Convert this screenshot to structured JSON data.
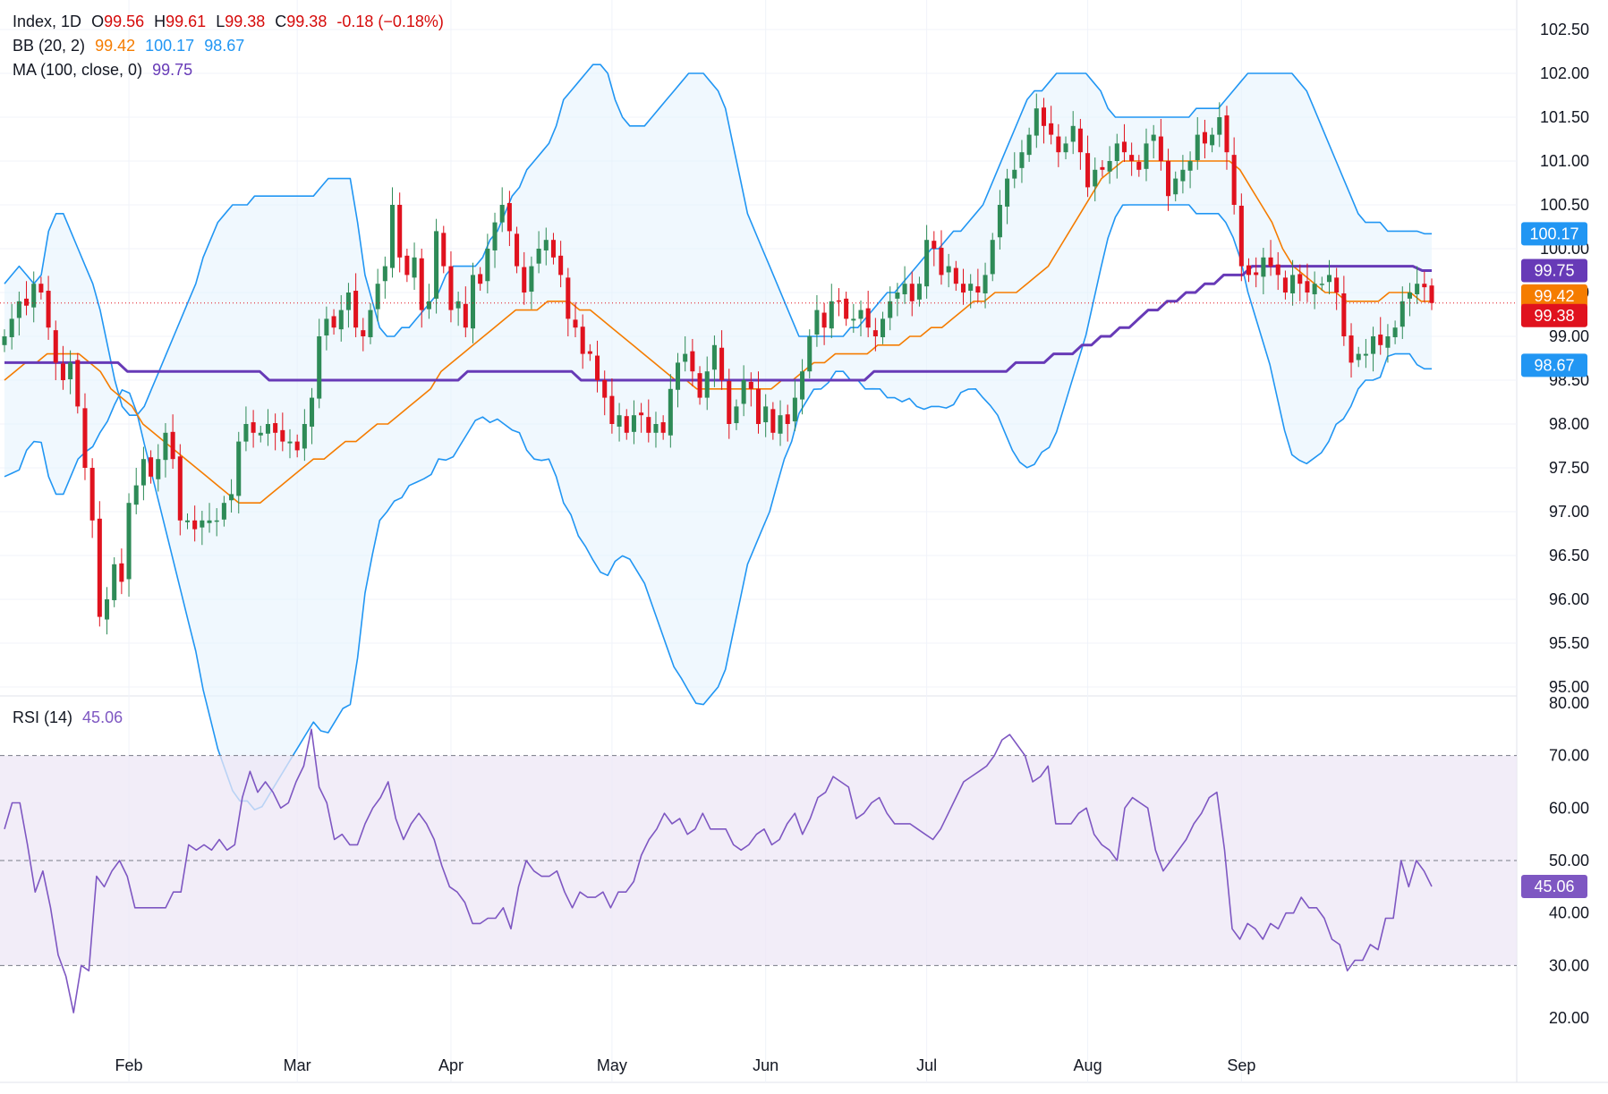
{
  "legend": {
    "symbol": "Index, 1D",
    "open_label": "O",
    "open": "99.56",
    "high_label": "H",
    "high": "99.61",
    "low_label": "L",
    "low": "99.38",
    "close_label": "C",
    "close": "99.38",
    "change": "-0.18 (−0.18%)",
    "bb_label": "BB (20, 2)",
    "bb_basis": "99.42",
    "bb_upper": "100.17",
    "bb_lower": "98.67",
    "ma_label": "MA (100, close, 0)",
    "ma_value": "99.75",
    "rsi_label": "RSI (14)",
    "rsi_value": "45.06"
  },
  "colors": {
    "up": "#26a69a",
    "up_body": "#2e8b57",
    "down": "#e0121e",
    "bb_basis": "#f57c00",
    "bb_band": "#2196f3",
    "bb_fill": "#e3f2fd",
    "ma": "#673ab7",
    "rsi": "#7e57c2",
    "rsi_fill": "#ede7f6"
  },
  "chart_data": [
    {
      "type": "candlestick",
      "title": "",
      "ylim": [
        95.0,
        102.5
      ],
      "y_ticks": [
        "102.50",
        "102.00",
        "101.50",
        "101.00",
        "100.50",
        "100.00",
        "99.50",
        "99.00",
        "98.50",
        "98.00",
        "97.50",
        "97.00",
        "96.50",
        "96.00",
        "95.50",
        "95.00"
      ],
      "x_ticks": [
        "Feb",
        "Mar",
        "Apr",
        "May",
        "Jun",
        "Jul",
        "Aug",
        "Sep"
      ],
      "current_price": 99.38,
      "price_badges": [
        {
          "series": "BB upper",
          "value": "100.17"
        },
        {
          "series": "MA 100",
          "value": "99.75"
        },
        {
          "series": "BB basis",
          "value": "99.42"
        },
        {
          "series": "Close",
          "value": "99.38"
        },
        {
          "series": "BB lower",
          "value": "98.67"
        }
      ],
      "closes": [
        99.0,
        99.2,
        99.4,
        99.35,
        99.6,
        99.5,
        99.1,
        98.7,
        98.5,
        98.7,
        98.2,
        97.5,
        96.9,
        95.8,
        96.0,
        96.4,
        96.2,
        97.1,
        97.3,
        97.6,
        97.4,
        97.6,
        97.9,
        97.6,
        96.9,
        96.9,
        96.8,
        96.9,
        96.9,
        96.9,
        97.1,
        97.2,
        97.8,
        98.0,
        97.9,
        97.9,
        98.0,
        97.9,
        97.8,
        97.8,
        97.7,
        98.0,
        98.3,
        99.0,
        99.2,
        99.1,
        99.3,
        99.5,
        99.1,
        99.0,
        99.3,
        99.6,
        99.8,
        100.5,
        99.9,
        99.7,
        99.9,
        99.3,
        99.4,
        100.2,
        99.8,
        99.3,
        99.4,
        99.1,
        99.7,
        99.6,
        100.0,
        100.3,
        100.5,
        100.2,
        99.8,
        99.5,
        99.8,
        100.0,
        100.1,
        99.9,
        99.7,
        99.2,
        99.1,
        98.8,
        98.8,
        98.5,
        98.3,
        98.0,
        98.1,
        97.9,
        98.1,
        98.1,
        97.9,
        98.0,
        97.9,
        98.4,
        98.7,
        98.8,
        98.6,
        98.3,
        98.6,
        98.9,
        98.5,
        98.0,
        98.2,
        98.5,
        98.4,
        98.0,
        98.2,
        97.9,
        98.1,
        98.0,
        98.3,
        98.6,
        99.0,
        99.3,
        99.1,
        99.4,
        99.4,
        99.2,
        99.2,
        99.3,
        99.1,
        99.0,
        99.2,
        99.4,
        99.5,
        99.6,
        99.4,
        99.6,
        100.1,
        100.0,
        99.7,
        99.8,
        99.6,
        99.5,
        99.6,
        99.5,
        99.7,
        100.1,
        100.5,
        100.8,
        100.9,
        101.1,
        101.3,
        101.6,
        101.4,
        101.3,
        101.1,
        101.2,
        101.4,
        101.1,
        100.7,
        100.9,
        100.9,
        101.0,
        101.2,
        101.1,
        101.0,
        100.9,
        101.2,
        101.3,
        101.0,
        100.6,
        100.8,
        100.9,
        101.0,
        101.3,
        101.2,
        101.3,
        101.5,
        101.1,
        100.5,
        99.8,
        99.7,
        99.7,
        99.9,
        99.8,
        99.7,
        99.5,
        99.7,
        99.6,
        99.5,
        99.6,
        99.6,
        99.7,
        99.5,
        99.0,
        98.7,
        98.8,
        98.8,
        99.0,
        98.9,
        99.0,
        99.1,
        99.4,
        99.5,
        99.6,
        99.56,
        99.38
      ],
      "bb_upper": [
        99.6,
        99.7,
        99.8,
        99.7,
        99.6,
        99.7,
        100.2,
        100.4,
        100.4,
        100.2,
        100.0,
        99.8,
        99.6,
        99.3,
        98.9,
        98.5,
        98.2,
        98.1,
        98.1,
        98.2,
        98.4,
        98.6,
        98.8,
        99.0,
        99.2,
        99.4,
        99.6,
        99.9,
        100.1,
        100.3,
        100.4,
        100.5,
        100.5,
        100.5,
        100.6,
        100.6,
        100.6,
        100.6,
        100.6,
        100.6,
        100.6,
        100.6,
        100.6,
        100.7,
        100.8,
        100.8,
        100.8,
        100.8,
        100.3,
        99.7,
        99.4,
        99.1,
        99.0,
        99.0,
        99.1,
        99.1,
        99.2,
        99.3,
        99.4,
        99.5,
        99.7,
        99.8,
        99.8,
        99.8,
        99.8,
        99.9,
        100.1,
        100.2,
        100.4,
        100.6,
        100.7,
        100.9,
        101.0,
        101.1,
        101.2,
        101.4,
        101.7,
        101.8,
        101.9,
        102.0,
        102.1,
        102.1,
        102.0,
        101.7,
        101.5,
        101.4,
        101.4,
        101.4,
        101.5,
        101.6,
        101.7,
        101.8,
        101.9,
        102.0,
        102.0,
        102.0,
        101.9,
        101.8,
        101.6,
        101.2,
        100.8,
        100.4,
        100.2,
        100.0,
        99.8,
        99.6,
        99.4,
        99.2,
        99.0,
        99.0,
        99.0,
        99.0,
        99.0,
        99.0,
        99.0,
        99.1,
        99.1,
        99.2,
        99.3,
        99.4,
        99.5,
        99.5,
        99.6,
        99.7,
        99.8,
        99.9,
        100.0,
        100.0,
        100.1,
        100.2,
        100.2,
        100.3,
        100.4,
        100.5,
        100.7,
        100.9,
        101.1,
        101.3,
        101.5,
        101.7,
        101.8,
        101.8,
        101.9,
        102.0,
        102.0,
        102.0,
        102.0,
        102.0,
        101.9,
        101.8,
        101.6,
        101.5,
        101.5,
        101.5,
        101.5,
        101.5,
        101.5,
        101.5,
        101.5,
        101.5,
        101.5,
        101.5,
        101.6,
        101.6,
        101.6,
        101.6,
        101.7,
        101.8,
        101.9,
        102.0,
        102.0,
        102.0,
        102.0,
        102.0,
        102.0,
        102.0,
        101.9,
        101.8,
        101.6,
        101.4,
        101.2,
        101.0,
        100.8,
        100.6,
        100.4,
        100.3,
        100.3,
        100.3,
        100.2,
        100.2,
        100.2,
        100.2,
        100.2,
        100.17,
        100.17
      ],
      "bb_basis": [
        98.5,
        98.6,
        98.7,
        98.7,
        98.8,
        98.8,
        98.8,
        98.8,
        98.7,
        98.6,
        98.4,
        98.3,
        98.2,
        98.0,
        97.9,
        97.8,
        97.7,
        97.6,
        97.5,
        97.4,
        97.3,
        97.2,
        97.1,
        97.1,
        97.1,
        97.2,
        97.3,
        97.4,
        97.5,
        97.6,
        97.6,
        97.7,
        97.8,
        97.8,
        97.9,
        98.0,
        98.0,
        98.1,
        98.2,
        98.3,
        98.4,
        98.6,
        98.7,
        98.8,
        98.9,
        99.0,
        99.1,
        99.2,
        99.3,
        99.3,
        99.3,
        99.4,
        99.4,
        99.4,
        99.3,
        99.3,
        99.2,
        99.1,
        99.0,
        98.9,
        98.8,
        98.7,
        98.6,
        98.5,
        98.5,
        98.4,
        98.4,
        98.4,
        98.4,
        98.4,
        98.4,
        98.4,
        98.4,
        98.5,
        98.5,
        98.6,
        98.7,
        98.7,
        98.8,
        98.8,
        98.8,
        98.8,
        98.9,
        98.9,
        98.9,
        99.0,
        99.0,
        99.1,
        99.1,
        99.2,
        99.3,
        99.4,
        99.4,
        99.5,
        99.5,
        99.5,
        99.6,
        99.7,
        99.8,
        100.0,
        100.2,
        100.4,
        100.6,
        100.8,
        100.9,
        101.0,
        101.0,
        101.0,
        101.0,
        101.0,
        101.0,
        101.0,
        101.0,
        101.0,
        101.0,
        101.0,
        100.9,
        100.7,
        100.5,
        100.3,
        100.0,
        99.8,
        99.7,
        99.6,
        99.5,
        99.5,
        99.4,
        99.4,
        99.4,
        99.4,
        99.5,
        99.5,
        99.5,
        99.4,
        99.4
      ],
      "ma100": [
        98.7,
        98.7,
        98.7,
        98.7,
        98.7,
        98.7,
        98.7,
        98.7,
        98.7,
        98.7,
        98.7,
        98.7,
        98.7,
        98.6,
        98.6,
        98.6,
        98.6,
        98.6,
        98.6,
        98.6,
        98.6,
        98.6,
        98.6,
        98.6,
        98.6,
        98.6,
        98.6,
        98.6,
        98.5,
        98.5,
        98.5,
        98.5,
        98.5,
        98.5,
        98.5,
        98.5,
        98.5,
        98.5,
        98.5,
        98.5,
        98.5,
        98.5,
        98.5,
        98.5,
        98.5,
        98.5,
        98.5,
        98.5,
        98.5,
        98.6,
        98.6,
        98.6,
        98.6,
        98.6,
        98.6,
        98.6,
        98.6,
        98.6,
        98.6,
        98.6,
        98.6,
        98.5,
        98.5,
        98.5,
        98.5,
        98.5,
        98.5,
        98.5,
        98.5,
        98.5,
        98.5,
        98.5,
        98.5,
        98.5,
        98.5,
        98.5,
        98.5,
        98.5,
        98.5,
        98.5,
        98.5,
        98.5,
        98.5,
        98.5,
        98.5,
        98.5,
        98.5,
        98.5,
        98.5,
        98.5,
        98.5,
        98.5,
        98.6,
        98.6,
        98.6,
        98.6,
        98.6,
        98.6,
        98.6,
        98.6,
        98.6,
        98.6,
        98.6,
        98.6,
        98.6,
        98.6,
        98.6,
        98.7,
        98.7,
        98.7,
        98.7,
        98.8,
        98.8,
        98.8,
        98.9,
        98.9,
        99.0,
        99.0,
        99.1,
        99.1,
        99.2,
        99.3,
        99.3,
        99.4,
        99.4,
        99.5,
        99.5,
        99.6,
        99.6,
        99.7,
        99.7,
        99.7,
        99.8,
        99.8,
        99.8,
        99.8,
        99.8,
        99.8,
        99.8,
        99.8,
        99.8,
        99.8,
        99.8,
        99.8,
        99.8,
        99.8,
        99.8,
        99.8,
        99.8,
        99.8,
        99.75,
        99.75
      ]
    },
    {
      "type": "line",
      "title": "",
      "ylim": [
        16,
        80
      ],
      "y_ticks": [
        "80.00",
        "70.00",
        "60.00",
        "50.00",
        "40.00",
        "30.00",
        "20.00"
      ],
      "levels": [
        70,
        50,
        30
      ],
      "x_ticks": [
        "Feb",
        "Mar",
        "Apr",
        "May",
        "Jun",
        "Jul",
        "Aug",
        "Sep"
      ],
      "series": [
        {
          "values": [
            56,
            61,
            61,
            53,
            44,
            48,
            41,
            32,
            28,
            21,
            30,
            29,
            47,
            45,
            48,
            50,
            47,
            41,
            41,
            41,
            41,
            41,
            44,
            44,
            53,
            52,
            53,
            52,
            54,
            52,
            53,
            62,
            67,
            63,
            65,
            63,
            60,
            61,
            65,
            68,
            75,
            64,
            61,
            54,
            55,
            53,
            53,
            57,
            60,
            62,
            65,
            58,
            54,
            57,
            59,
            57,
            54,
            49,
            45,
            44,
            42,
            38,
            38,
            39,
            39,
            41,
            37,
            45,
            50,
            48,
            47,
            47,
            48,
            44,
            41,
            44,
            43,
            43,
            44,
            41,
            44,
            44,
            46,
            51,
            54,
            56,
            59,
            57,
            58,
            55,
            56,
            59,
            56,
            56,
            56,
            53,
            52,
            53,
            55,
            56,
            53,
            54,
            57,
            59,
            55,
            58,
            62,
            63,
            66,
            65,
            64,
            58,
            59,
            61,
            62,
            59,
            57,
            57,
            57,
            56,
            55,
            54,
            56,
            59,
            62,
            65,
            66,
            67,
            68,
            70,
            73,
            74,
            72,
            70,
            65,
            66,
            68,
            57,
            57,
            57,
            59,
            60,
            55,
            53,
            52,
            50,
            60,
            62,
            61,
            60,
            52,
            48,
            50,
            52,
            54,
            57,
            59,
            62,
            63,
            52,
            37,
            35,
            38,
            37,
            35,
            38,
            37,
            40,
            40,
            43,
            41,
            41,
            39,
            35,
            34,
            29,
            31,
            31,
            34,
            33,
            39,
            39,
            50,
            45,
            50,
            48,
            45.06
          ]
        }
      ]
    }
  ]
}
